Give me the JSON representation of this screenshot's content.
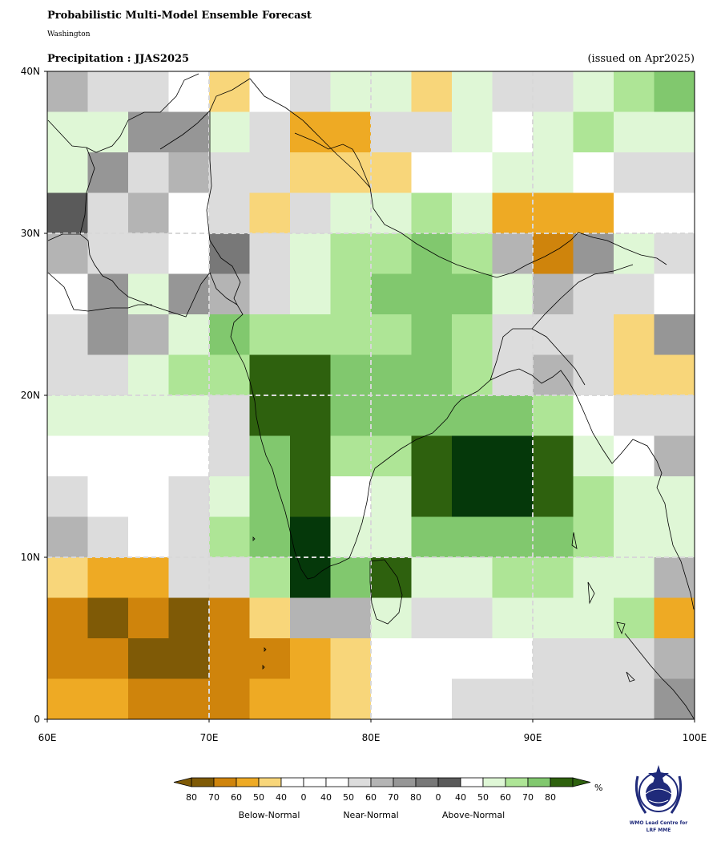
{
  "header": {
    "title": "Probabilistic Multi-Model Ensemble Forecast",
    "subtitle": "Washington",
    "period": "Precipitation : JJAS2025",
    "issued": "(issued on Apr2025)"
  },
  "axes": {
    "lon_range": [
      60,
      100
    ],
    "lat_range": [
      0,
      40
    ],
    "x_ticks": [
      {
        "v": 60,
        "label": "60E"
      },
      {
        "v": 70,
        "label": "70E"
      },
      {
        "v": 80,
        "label": "80E"
      },
      {
        "v": 90,
        "label": "90E"
      },
      {
        "v": 100,
        "label": "100E"
      }
    ],
    "y_ticks": [
      {
        "v": 0,
        "label": "0"
      },
      {
        "v": 10,
        "label": "10N"
      },
      {
        "v": 20,
        "label": "20N"
      },
      {
        "v": 30,
        "label": "30N"
      },
      {
        "v": 40,
        "label": "40N"
      }
    ],
    "gridlines": [
      70,
      80,
      90,
      10,
      20,
      30
    ],
    "grid": true
  },
  "map_data": {
    "cell_deg": 2.5,
    "lon_start": 60,
    "lat_top": 40,
    "codes_note": "B=below-normal, N=near-normal, A=above-normal; numbers are probability class",
    "rows": [
      [
        "N50",
        "N40",
        "N40",
        "W",
        "B50",
        "W",
        "N40",
        "A40",
        "A40",
        "B50",
        "A40",
        "N40",
        "N40",
        "A40",
        "A50",
        "A60"
      ],
      [
        "A40",
        "A40",
        "N60",
        "N60",
        "A40",
        "N40",
        "B60",
        "B60",
        "N40",
        "N40",
        "A40",
        "W",
        "A40",
        "A50",
        "A40",
        "A40"
      ],
      [
        "A40",
        "N60",
        "N40",
        "N50",
        "N40",
        "N40",
        "B50",
        "B50",
        "B50",
        "W",
        "W",
        "A40",
        "A40",
        "W",
        "N40",
        "N40"
      ],
      [
        "N80",
        "N40",
        "N50",
        "W",
        "N40",
        "B50",
        "N40",
        "A40",
        "A40",
        "A50",
        "A40",
        "B60",
        "B60",
        "B60",
        "W",
        "W"
      ],
      [
        "N50",
        "N40",
        "N40",
        "W",
        "N70",
        "N40",
        "A40",
        "A50",
        "A50",
        "A60",
        "A50",
        "N50",
        "B70",
        "N60",
        "A40",
        "N40"
      ],
      [
        "W",
        "N60",
        "A40",
        "N60",
        "N50",
        "N40",
        "A40",
        "A50",
        "A60",
        "A60",
        "A60",
        "A40",
        "N50",
        "N40",
        "N40",
        "W"
      ],
      [
        "N40",
        "N60",
        "N50",
        "A40",
        "A60",
        "A50",
        "A50",
        "A50",
        "A50",
        "A60",
        "A50",
        "N40",
        "N40",
        "N40",
        "B50",
        "N60"
      ],
      [
        "N40",
        "N40",
        "A40",
        "A50",
        "A50",
        "A80",
        "A80",
        "A60",
        "A60",
        "A60",
        "A50",
        "N40",
        "N50",
        "N40",
        "B50",
        "B50"
      ],
      [
        "A40",
        "A40",
        "A40",
        "A40",
        "N40",
        "A80",
        "A80",
        "A60",
        "A60",
        "A60",
        "A60",
        "A60",
        "A50",
        "W",
        "N40",
        "N40"
      ],
      [
        "W",
        "W",
        "W",
        "W",
        "N40",
        "A60",
        "A80",
        "A50",
        "A50",
        "A80",
        "A90",
        "A90",
        "A80",
        "A40",
        "W",
        "N50"
      ],
      [
        "N40",
        "W",
        "W",
        "N40",
        "A40",
        "A60",
        "A80",
        "W",
        "A40",
        "A80",
        "A90",
        "A90",
        "A80",
        "A50",
        "A40",
        "A40"
      ],
      [
        "N50",
        "N40",
        "W",
        "N40",
        "A50",
        "A60",
        "A90",
        "A40",
        "A40",
        "A60",
        "A60",
        "A60",
        "A60",
        "A50",
        "A40",
        "A40"
      ],
      [
        "B50",
        "B60",
        "B60",
        "N40",
        "N40",
        "A50",
        "A90",
        "A60",
        "A80",
        "A40",
        "A40",
        "A50",
        "A50",
        "A40",
        "A40",
        "N50"
      ],
      [
        "B70",
        "B80",
        "B70",
        "B80",
        "B70",
        "B50",
        "N50",
        "N50",
        "A40",
        "N40",
        "N40",
        "A40",
        "A40",
        "A40",
        "A50",
        "B60"
      ],
      [
        "B70",
        "B70",
        "B80",
        "B80",
        "B70",
        "B70",
        "B60",
        "B50",
        "W",
        "W",
        "W",
        "W",
        "N40",
        "N40",
        "N40",
        "N50"
      ],
      [
        "B60",
        "B60",
        "B70",
        "B70",
        "B70",
        "B60",
        "B60",
        "B50",
        "W",
        "W",
        "N40",
        "N40",
        "N40",
        "N40",
        "N40",
        "N60"
      ]
    ]
  },
  "legend": {
    "colors": {
      "B80": "#7f5a06",
      "B70": "#cf840c",
      "B60": "#eeaa24",
      "B50": "#f8d67a",
      "W": "#ffffff",
      "N40": "#dcdcdc",
      "N50": "#b4b4b4",
      "N60": "#969696",
      "N70": "#787878",
      "N80": "#5a5a5a",
      "A40": "#dff7d6",
      "A50": "#aee596",
      "A60": "#81c86e",
      "A80": "#2e610e",
      "A90": "#05380a"
    },
    "bar": [
      "B80",
      "B70",
      "B60",
      "B50",
      "W",
      "W",
      "W",
      "N40",
      "N50",
      "N60",
      "N70",
      "N80",
      "W",
      "A40",
      "A50",
      "A60",
      "A80"
    ],
    "tick_labels": [
      "80",
      "70",
      "60",
      "50",
      "40",
      "0",
      "40",
      "50",
      "60",
      "70",
      "80",
      "0",
      "40",
      "50",
      "60",
      "70",
      "80"
    ],
    "unit": "%",
    "category_labels": [
      "Below-Normal",
      "Near-Normal",
      "Above-Normal"
    ]
  },
  "logo": {
    "caption_line1": "WMO Lead Centre for",
    "caption_line2": "LRF MME",
    "color": "#1f2a7a"
  }
}
